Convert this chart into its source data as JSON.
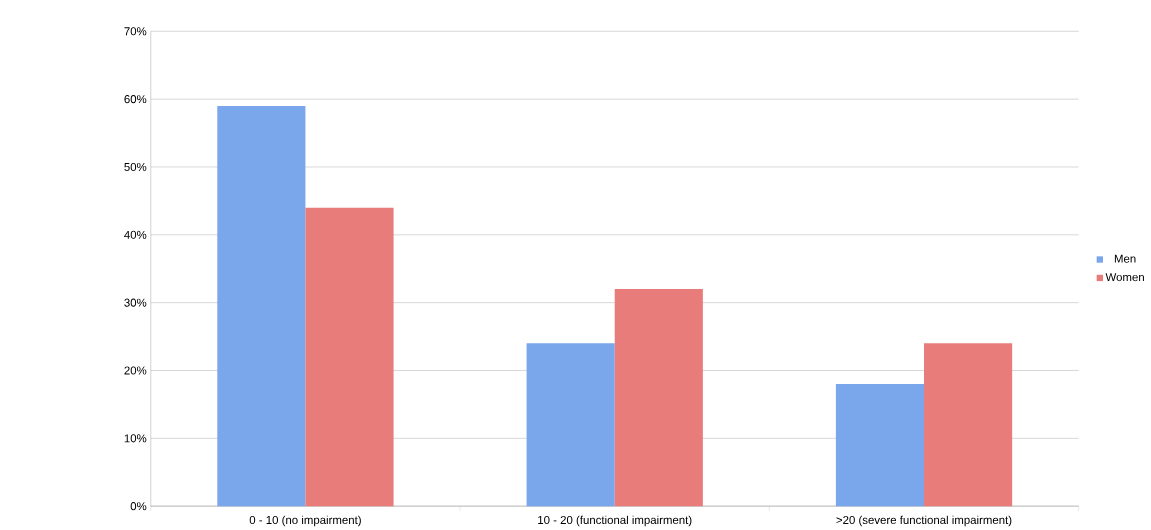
{
  "chart_data": {
    "type": "bar",
    "categories": [
      "0 - 10 (no impairment)",
      "10 - 20 (functional impairment)",
      ">20 (severe functional impairment)"
    ],
    "series": [
      {
        "name": "Men",
        "color": "#7aa6ec",
        "values": [
          59,
          24,
          18
        ]
      },
      {
        "name": "Women",
        "color": "#e87c7a",
        "values": [
          44,
          32,
          24
        ]
      }
    ],
    "ylim": [
      0,
      70
    ],
    "yticks": [
      {
        "value": 0,
        "label": "0%"
      },
      {
        "value": 10,
        "label": "10%"
      },
      {
        "value": 20,
        "label": "20%"
      },
      {
        "value": 30,
        "label": "30%"
      },
      {
        "value": 40,
        "label": "40%"
      },
      {
        "value": 50,
        "label": "50%"
      },
      {
        "value": 60,
        "label": "60%"
      },
      {
        "value": 70,
        "label": "70%"
      }
    ],
    "grid": "y",
    "legend": "right"
  }
}
